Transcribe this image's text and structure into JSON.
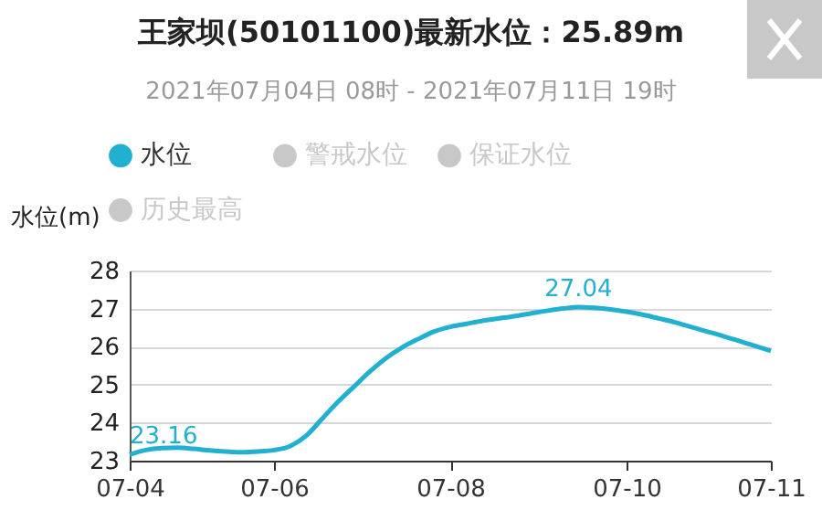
{
  "chart_data": {
    "type": "line",
    "title": "王家坝(50101100)最新水位：25.89m",
    "subtitle": "2021年07月04日 08时 - 2021年07月11日 19时",
    "ylabel": "水位(m)",
    "categories": [
      "07-04",
      null,
      null,
      null,
      null,
      null,
      null,
      null,
      null,
      "07-06",
      null,
      null,
      null,
      null,
      null,
      null,
      null,
      null,
      null,
      null,
      "07-08",
      null,
      null,
      null,
      null,
      null,
      null,
      null,
      null,
      null,
      null,
      "07-10",
      null,
      null,
      null,
      null,
      null,
      null,
      null,
      null,
      "07-11"
    ],
    "series": [
      {
        "name": "水位",
        "color": "#21b0d0",
        "values": [
          23.16,
          23.28,
          23.33,
          23.34,
          23.31,
          23.27,
          23.24,
          23.22,
          23.24,
          23.28,
          23.38,
          23.65,
          24.1,
          24.55,
          24.95,
          25.35,
          25.7,
          25.98,
          26.2,
          26.4,
          26.52,
          26.6,
          26.68,
          26.74,
          26.8,
          26.87,
          26.94,
          27.0,
          27.04,
          27.02,
          26.98,
          26.92,
          26.84,
          26.74,
          26.64,
          26.52,
          26.4,
          26.28,
          26.15,
          26.02,
          25.89
        ],
        "value_labels": [
          "23.16",
          null,
          null,
          null,
          null,
          null,
          null,
          null,
          null,
          null,
          null,
          null,
          null,
          null,
          null,
          null,
          null,
          null,
          null,
          null,
          null,
          null,
          null,
          null,
          null,
          null,
          null,
          null,
          "27.04",
          null,
          null,
          null,
          null,
          null,
          null,
          null,
          null,
          null,
          null,
          null,
          null
        ]
      },
      {
        "name": "警戒水位",
        "color": "#c8c8c8",
        "values": [
          null,
          null,
          null,
          null,
          null,
          null,
          null,
          null,
          null,
          null,
          null,
          null,
          null,
          null,
          null,
          null,
          null,
          null,
          null,
          null,
          null,
          null,
          null,
          null,
          null,
          null,
          null,
          null,
          null,
          null,
          null,
          null,
          null,
          null,
          null,
          null,
          null,
          null,
          null,
          null,
          null
        ]
      },
      {
        "name": "保证水位",
        "color": "#c8c8c8",
        "values": [
          null,
          null,
          null,
          null,
          null,
          null,
          null,
          null,
          null,
          null,
          null,
          null,
          null,
          null,
          null,
          null,
          null,
          null,
          null,
          null,
          null,
          null,
          null,
          null,
          null,
          null,
          null,
          null,
          null,
          null,
          null,
          null,
          null,
          null,
          null,
          null,
          null,
          null,
          null,
          null,
          null
        ]
      },
      {
        "name": "历史最高",
        "color": "#c8c8c8",
        "values": [
          null,
          null,
          null,
          null,
          null,
          null,
          null,
          null,
          null,
          null,
          null,
          null,
          null,
          null,
          null,
          null,
          null,
          null,
          null,
          null,
          null,
          null,
          null,
          null,
          null,
          null,
          null,
          null,
          null,
          null,
          null,
          null,
          null,
          null,
          null,
          null,
          null,
          null,
          null,
          null,
          null
        ]
      }
    ],
    "ylim": [
      23,
      28
    ],
    "yticks": [
      23,
      24,
      25,
      26,
      27,
      28
    ],
    "grid": "y",
    "legend": "top",
    "marker": "none",
    "line_style": "solid"
  }
}
